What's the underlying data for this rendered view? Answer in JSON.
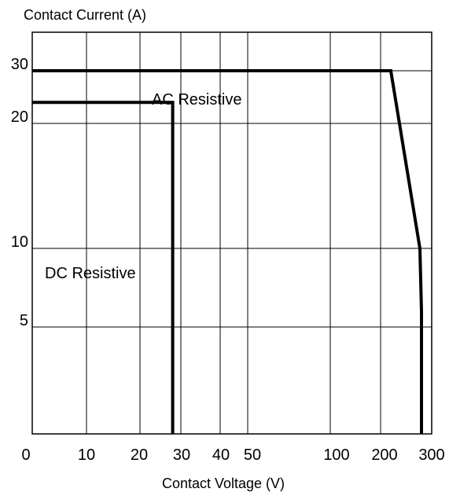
{
  "chart_data": {
    "type": "line",
    "title": "",
    "xlabel": "Contact Voltage (V)",
    "ylabel": "Contact Current (A)",
    "x_scale": "non-linear (0-10-20-30-40-50 linear spacing, then 100-200-300)",
    "y_scale": "non-linear (0, 5, 10, 20, 30)",
    "xticks": [
      "0",
      "10",
      "20",
      "30",
      "40",
      "50",
      "100",
      "200",
      "300"
    ],
    "xtick_values": [
      0,
      10,
      20,
      30,
      40,
      50,
      100,
      200,
      300
    ],
    "yticks": [
      "5",
      "10",
      "20",
      "30"
    ],
    "ytick_values": [
      5,
      10,
      20,
      30
    ],
    "xlim": [
      0,
      300
    ],
    "ylim": [
      0,
      30
    ],
    "grid": true,
    "line_color": "#000000",
    "series": [
      {
        "name": "AC Resistive",
        "points": [
          [
            0,
            30
          ],
          [
            220,
            30
          ],
          [
            277,
            10
          ],
          [
            280,
            6
          ],
          [
            280,
            0
          ]
        ]
      },
      {
        "name": "DC Resistive",
        "points": [
          [
            0,
            24
          ],
          [
            28,
            24
          ],
          [
            28,
            0
          ]
        ]
      }
    ]
  }
}
